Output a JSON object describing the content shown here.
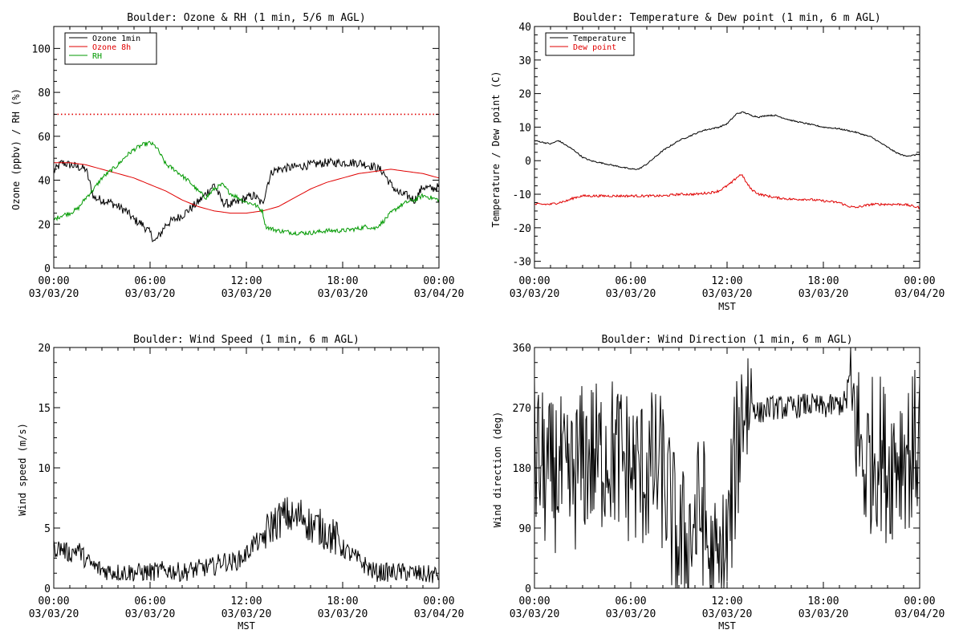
{
  "chart_data": [
    {
      "id": "ozone",
      "type": "line",
      "title": "Boulder: Ozone & RH (1 min, 5/6 m AGL)",
      "xlabel": "",
      "ylabel": "Ozone (ppbv) / RH (%)",
      "xlim_hours": [
        0,
        24
      ],
      "ylim": [
        0,
        110
      ],
      "yticks": [
        0,
        20,
        40,
        60,
        80,
        100
      ],
      "xticks": [
        {
          "hour": 0,
          "time": "00:00",
          "date": "03/03/20"
        },
        {
          "hour": 6,
          "time": "06:00",
          "date": "03/03/20"
        },
        {
          "hour": 12,
          "time": "12:00",
          "date": "03/03/20"
        },
        {
          "hour": 18,
          "time": "18:00",
          "date": "03/03/20"
        },
        {
          "hour": 24,
          "time": "00:00",
          "date": "03/04/20"
        }
      ],
      "reference_line": {
        "y": 70,
        "color": "#e00000",
        "style": "dotted"
      },
      "legend_position": "top-left",
      "series": [
        {
          "name": "Ozone 1min",
          "color": "#000000",
          "noise": 2.0,
          "x": [
            0,
            0.5,
            1,
            1.5,
            2,
            2.5,
            3,
            3.5,
            4,
            4.5,
            5,
            5.5,
            6,
            6.3,
            6.6,
            7,
            7.5,
            8,
            8.5,
            9,
            9.5,
            10,
            10.5,
            11,
            11.5,
            12,
            12.5,
            13,
            13.3,
            13.6,
            14,
            15,
            16,
            17,
            18,
            19,
            19.5,
            20,
            20.5,
            21,
            21.5,
            22,
            22.5,
            23,
            23.5,
            24
          ],
          "y": [
            44,
            48,
            47,
            46,
            45,
            32,
            31,
            30,
            28,
            26,
            22,
            20,
            16,
            12,
            15,
            20,
            22,
            24,
            27,
            30,
            34,
            38,
            30,
            29,
            30,
            32,
            33,
            29,
            38,
            44,
            45,
            46,
            47,
            48,
            48,
            48,
            47,
            46,
            44,
            38,
            34,
            33,
            31,
            37,
            36,
            37
          ]
        },
        {
          "name": "Ozone 8h",
          "color": "#e00000",
          "noise": 0,
          "x": [
            0,
            1,
            2,
            3,
            4,
            5,
            6,
            7,
            8,
            9,
            10,
            11,
            12,
            13,
            14,
            15,
            16,
            17,
            18,
            19,
            20,
            21,
            22,
            23,
            24
          ],
          "y": [
            48,
            48,
            47,
            45,
            43,
            41,
            38,
            35,
            31,
            28,
            26,
            25,
            25,
            26,
            28,
            32,
            36,
            39,
            41,
            43,
            44,
            45,
            44,
            43,
            41
          ]
        },
        {
          "name": "RH",
          "color": "#009900",
          "noise": 1.0,
          "x": [
            0,
            0.5,
            1,
            1.5,
            2,
            2.5,
            3,
            3.5,
            4,
            4.5,
            5,
            5.5,
            6,
            6.4,
            6.7,
            7,
            7.5,
            8,
            8.5,
            9,
            9.5,
            10,
            10.5,
            11,
            11.5,
            12,
            12.5,
            13,
            13.2,
            13.5,
            14,
            15,
            16,
            17,
            18,
            19,
            19.5,
            20,
            20.5,
            21,
            21.5,
            22,
            22.5,
            23,
            23.5,
            24
          ],
          "y": [
            22,
            24,
            25,
            27,
            32,
            36,
            41,
            44,
            47,
            51,
            54,
            56,
            57,
            55,
            51,
            47,
            45,
            42,
            39,
            35,
            32,
            36,
            38,
            34,
            32,
            30,
            29,
            26,
            19,
            18,
            17,
            16,
            16,
            17,
            17,
            18,
            19,
            18,
            21,
            25,
            28,
            30,
            31,
            33,
            32,
            31
          ]
        }
      ]
    },
    {
      "id": "temp",
      "type": "line",
      "title": "Boulder: Temperature & Dew point (1 min, 6 m AGL)",
      "xlabel": "MST",
      "ylabel": "Temperature / Dew point (C)",
      "xlim_hours": [
        0,
        24
      ],
      "ylim": [
        -32,
        40
      ],
      "yticks": [
        -30,
        -20,
        -10,
        0,
        10,
        20,
        30,
        40
      ],
      "xticks": [
        {
          "hour": 0,
          "time": "00:00",
          "date": "03/03/20"
        },
        {
          "hour": 6,
          "time": "06:00",
          "date": "03/03/20"
        },
        {
          "hour": 12,
          "time": "12:00",
          "date": "03/03/20"
        },
        {
          "hour": 18,
          "time": "18:00",
          "date": "03/03/20"
        },
        {
          "hour": 24,
          "time": "00:00",
          "date": "03/04/20"
        }
      ],
      "legend_position": "top-left",
      "series": [
        {
          "name": "Temperature",
          "color": "#000000",
          "noise": 0.2,
          "x": [
            0,
            0.5,
            1,
            1.5,
            2,
            2.5,
            3,
            3.5,
            4,
            4.5,
            5,
            5.5,
            6,
            6.5,
            7,
            7.5,
            8,
            8.5,
            9,
            9.5,
            10,
            10.5,
            11,
            11.5,
            12,
            12.3,
            12.6,
            13,
            13.5,
            14,
            14.5,
            15,
            16,
            17,
            18,
            19,
            20,
            21,
            22,
            22.5,
            23,
            23.5,
            24
          ],
          "y": [
            6,
            5.5,
            5,
            6,
            4.5,
            3,
            1,
            0,
            -0.5,
            -1,
            -1.5,
            -2,
            -2.5,
            -2.5,
            -1,
            1,
            3,
            4.5,
            6,
            7,
            8,
            9,
            9.5,
            10,
            11,
            12.5,
            14,
            14.5,
            13.5,
            13,
            13.5,
            13.5,
            12,
            11,
            10,
            9.5,
            8.5,
            7,
            4,
            2.5,
            1.5,
            1.5,
            2
          ]
        },
        {
          "name": "Dew point",
          "color": "#e00000",
          "noise": 0.35,
          "x": [
            0,
            1,
            1.5,
            2,
            2.5,
            3,
            4,
            5,
            6,
            7,
            8,
            9,
            10,
            11,
            11.5,
            12,
            12.3,
            12.6,
            12.9,
            13.2,
            13.5,
            14,
            14.5,
            15,
            16,
            17,
            18,
            19,
            19.5,
            20,
            20.5,
            21,
            22,
            23,
            24
          ],
          "y": [
            -13,
            -13,
            -12.5,
            -12,
            -11,
            -10.5,
            -10.5,
            -10.5,
            -10.5,
            -10.5,
            -10.5,
            -10,
            -10,
            -9.5,
            -9,
            -7.5,
            -6.5,
            -5,
            -4,
            -6.5,
            -8.5,
            -10,
            -10.5,
            -11,
            -11.5,
            -11.5,
            -12,
            -12.5,
            -13.5,
            -14,
            -13.5,
            -13,
            -13,
            -13,
            -14
          ]
        }
      ]
    },
    {
      "id": "wspd",
      "type": "line",
      "title": "Boulder: Wind Speed (1 min, 6 m AGL)",
      "xlabel": "MST",
      "ylabel": "Wind speed (m/s)",
      "xlim_hours": [
        0,
        24
      ],
      "ylim": [
        0,
        20
      ],
      "yticks": [
        0,
        5,
        10,
        15,
        20
      ],
      "xticks": [
        {
          "hour": 0,
          "time": "00:00",
          "date": "03/03/20"
        },
        {
          "hour": 6,
          "time": "06:00",
          "date": "03/03/20"
        },
        {
          "hour": 12,
          "time": "12:00",
          "date": "03/03/20"
        },
        {
          "hour": 18,
          "time": "18:00",
          "date": "03/03/20"
        },
        {
          "hour": 24,
          "time": "00:00",
          "date": "03/04/20"
        }
      ],
      "series": [
        {
          "name": "",
          "color": "#000000",
          "noise": 1.6,
          "x": [
            0,
            0.5,
            1,
            1.5,
            2,
            2.5,
            3,
            4,
            5,
            6,
            7,
            8,
            9,
            10,
            10.5,
            11,
            11.5,
            12,
            12.5,
            13,
            13.5,
            14,
            14.5,
            15,
            15.5,
            16,
            16.5,
            17,
            17.5,
            18,
            18.5,
            19,
            19.5,
            20,
            21,
            22,
            23,
            24
          ],
          "y": [
            3,
            3,
            2.5,
            3,
            2,
            1.5,
            1.2,
            1,
            1,
            1,
            1.2,
            1,
            1.3,
            1.5,
            2,
            1.8,
            2,
            2.5,
            3.5,
            3.5,
            4.5,
            5,
            5.5,
            5,
            5.5,
            4.5,
            4.5,
            4,
            3.5,
            3,
            2.5,
            2,
            1.5,
            1,
            1,
            1,
            0.8,
            0.8
          ]
        }
      ]
    },
    {
      "id": "wdir",
      "type": "line",
      "title": "Boulder: Wind Direction (1 min, 6 m AGL)",
      "xlabel": "MST",
      "ylabel": "Wind direction (deg)",
      "xlim_hours": [
        0,
        24
      ],
      "ylim": [
        0,
        360
      ],
      "yticks": [
        0,
        90,
        180,
        270,
        360
      ],
      "xticks": [
        {
          "hour": 0,
          "time": "00:00",
          "date": "03/03/20"
        },
        {
          "hour": 6,
          "time": "06:00",
          "date": "03/03/20"
        },
        {
          "hour": 12,
          "time": "12:00",
          "date": "03/03/20"
        },
        {
          "hour": 18,
          "time": "18:00",
          "date": "03/03/20"
        },
        {
          "hour": 24,
          "time": "00:00",
          "date": "03/04/20"
        }
      ],
      "series": [
        {
          "name": "",
          "color": "#000000",
          "noise": 120,
          "x": [
            0,
            0.5,
            1,
            1.5,
            2,
            2.5,
            3,
            3.5,
            4,
            4.5,
            5,
            5.5,
            6,
            6.5,
            7,
            7.5,
            8,
            8.5,
            9,
            9.5,
            10,
            10.5,
            11,
            11.5,
            12,
            12.5,
            13,
            13.5,
            14,
            14.5,
            15,
            16,
            17,
            18,
            19,
            19.5,
            20,
            20.5,
            21,
            21.5,
            22,
            22.5,
            23,
            23.5,
            24
          ],
          "y": [
            200,
            180,
            160,
            180,
            140,
            170,
            190,
            200,
            190,
            210,
            200,
            190,
            180,
            170,
            175,
            180,
            170,
            110,
            60,
            70,
            100,
            120,
            20,
            20,
            60,
            180,
            280,
            280,
            260,
            270,
            270,
            270,
            275,
            270,
            275,
            280,
            260,
            180,
            200,
            210,
            180,
            200,
            210,
            200,
            230
          ]
        }
      ]
    }
  ]
}
